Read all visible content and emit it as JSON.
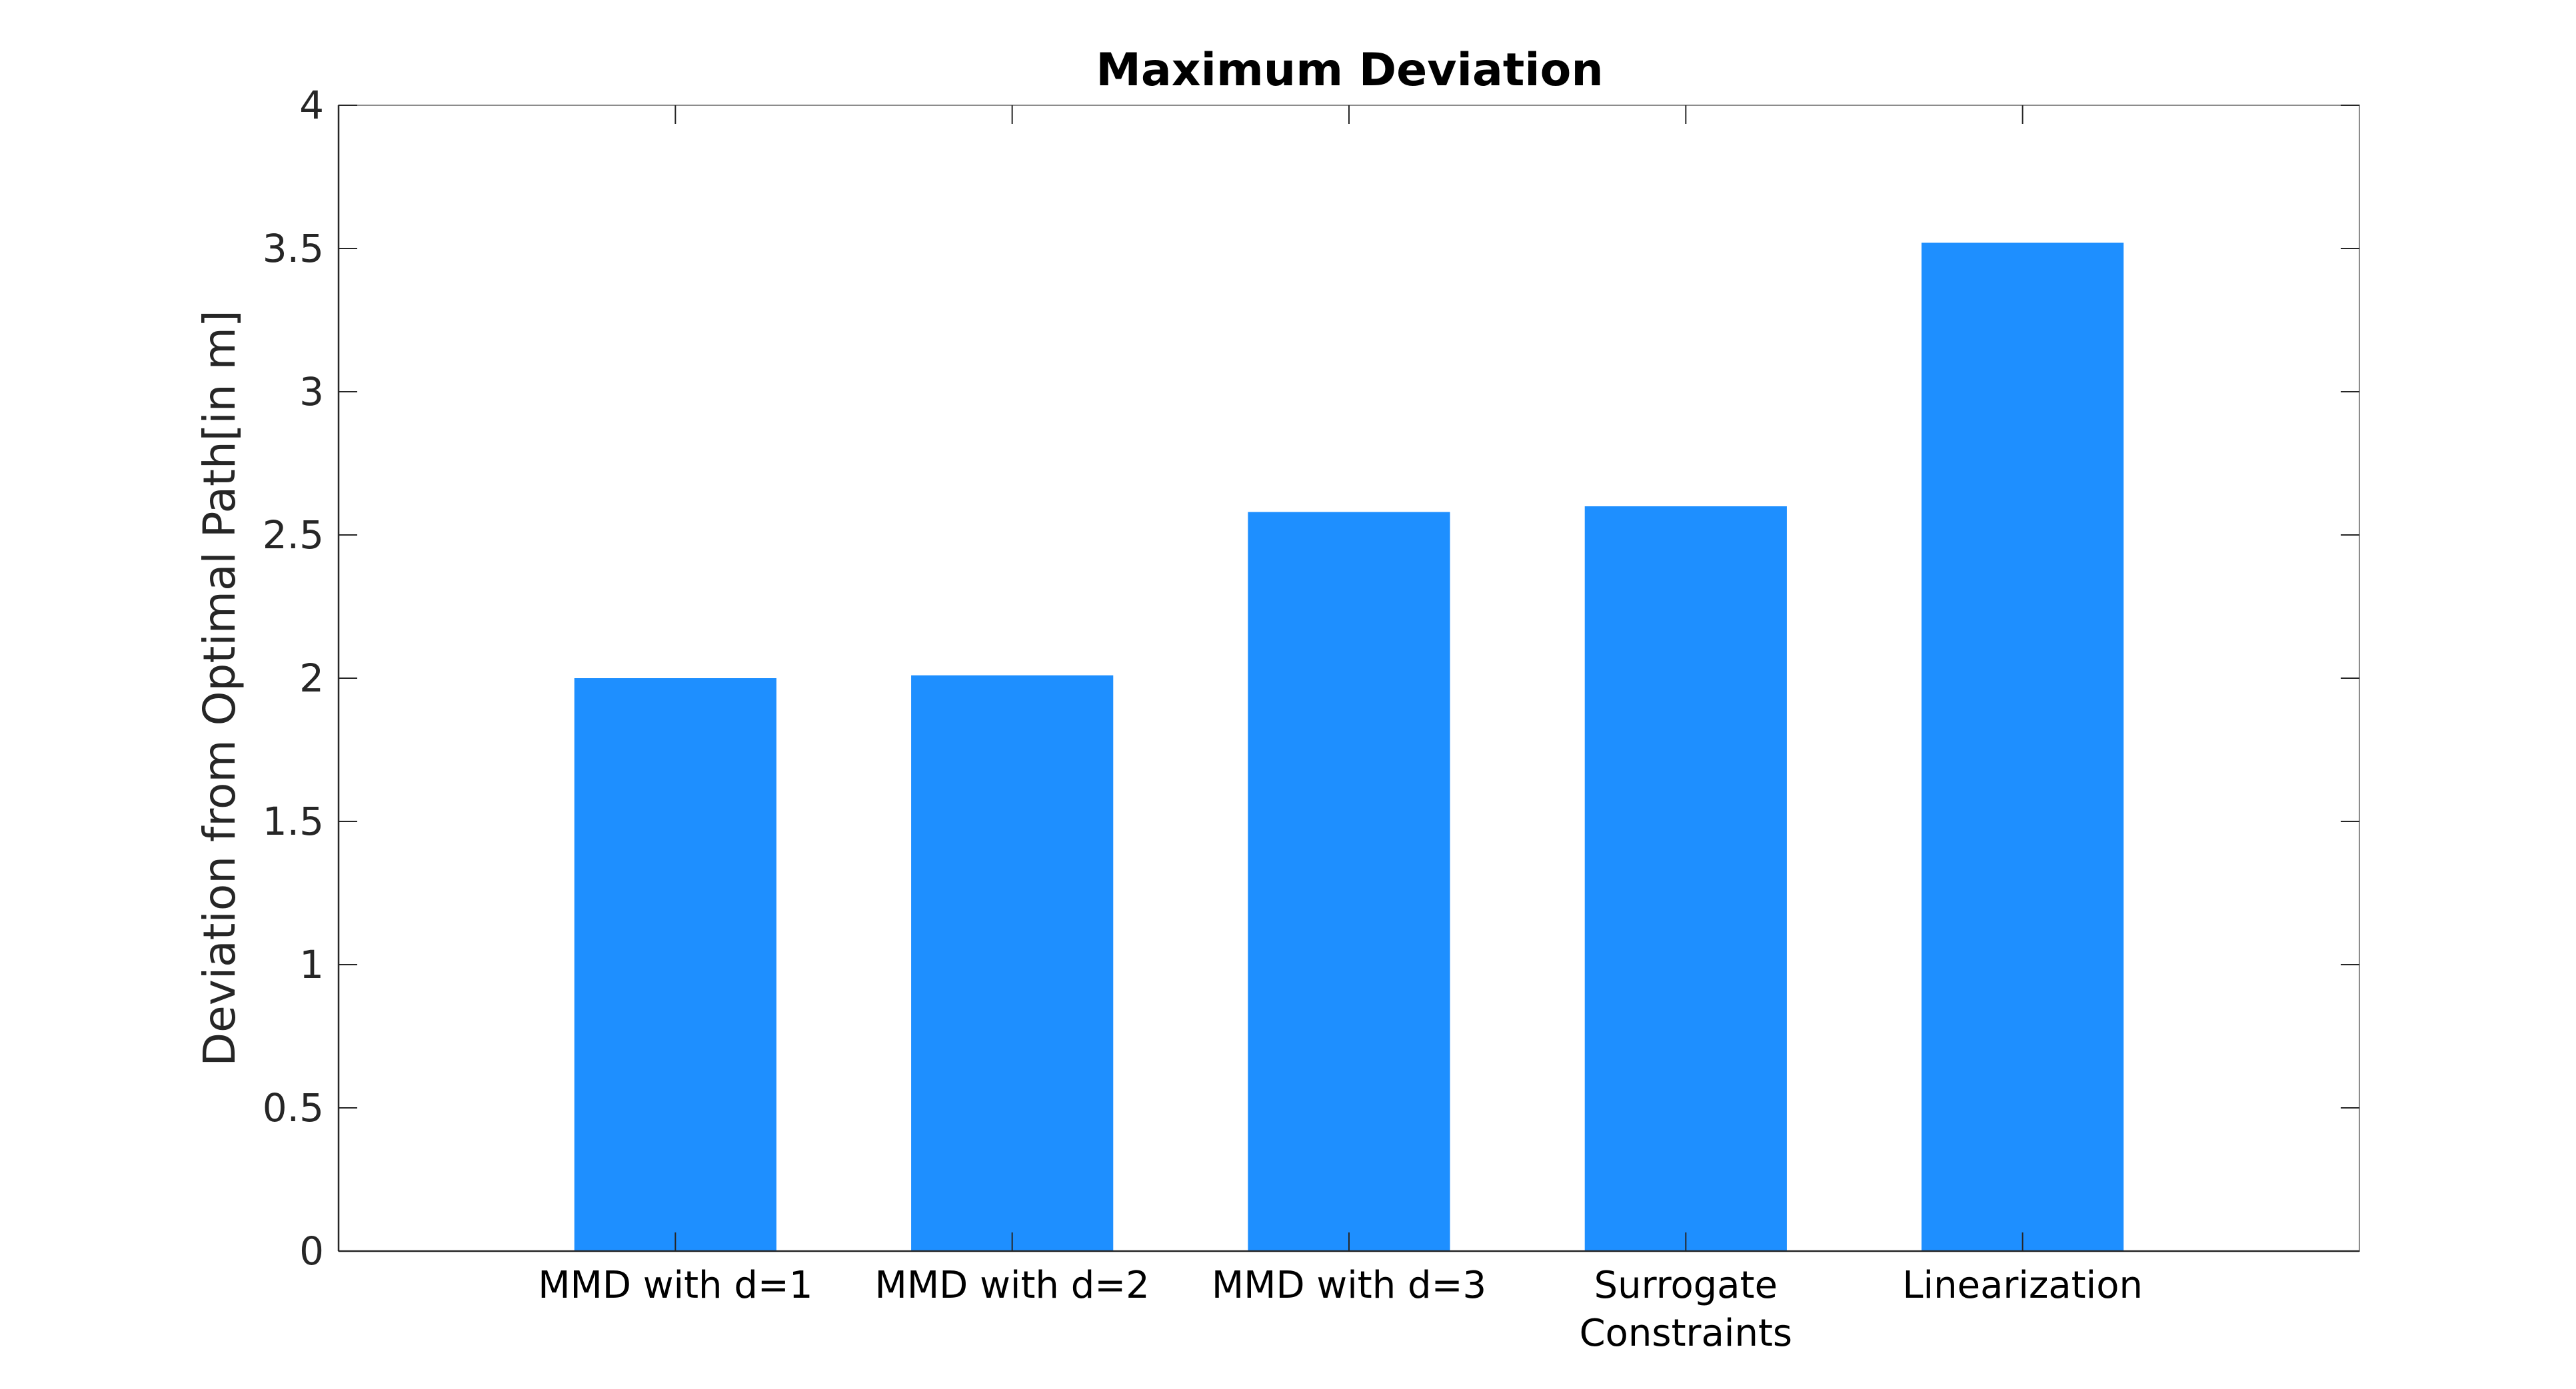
{
  "chart_data": {
    "type": "bar",
    "title": "Maximum Deviation",
    "xlabel": "",
    "ylabel": "Deviation from Optimal Path[in m]",
    "categories": [
      [
        "MMD with d=1"
      ],
      [
        "MMD with d=2"
      ],
      [
        "MMD with d=3"
      ],
      [
        "Surrogate",
        "Constraints"
      ],
      [
        "Linearization"
      ]
    ],
    "values": [
      2.0,
      2.01,
      2.58,
      2.6,
      3.52
    ],
    "ylim": [
      0,
      4
    ],
    "yticks": [
      0,
      0.5,
      1,
      1.5,
      2,
      2.5,
      3,
      3.5,
      4
    ],
    "ytick_labels": [
      "0",
      "0.5",
      "1",
      "1.5",
      "2",
      "2.5",
      "3",
      "3.5",
      "4"
    ],
    "grid": false,
    "legend": "none",
    "colors": {
      "bar": "#1e8fff",
      "axes": "#262626",
      "box": "#8c8c8c"
    }
  }
}
